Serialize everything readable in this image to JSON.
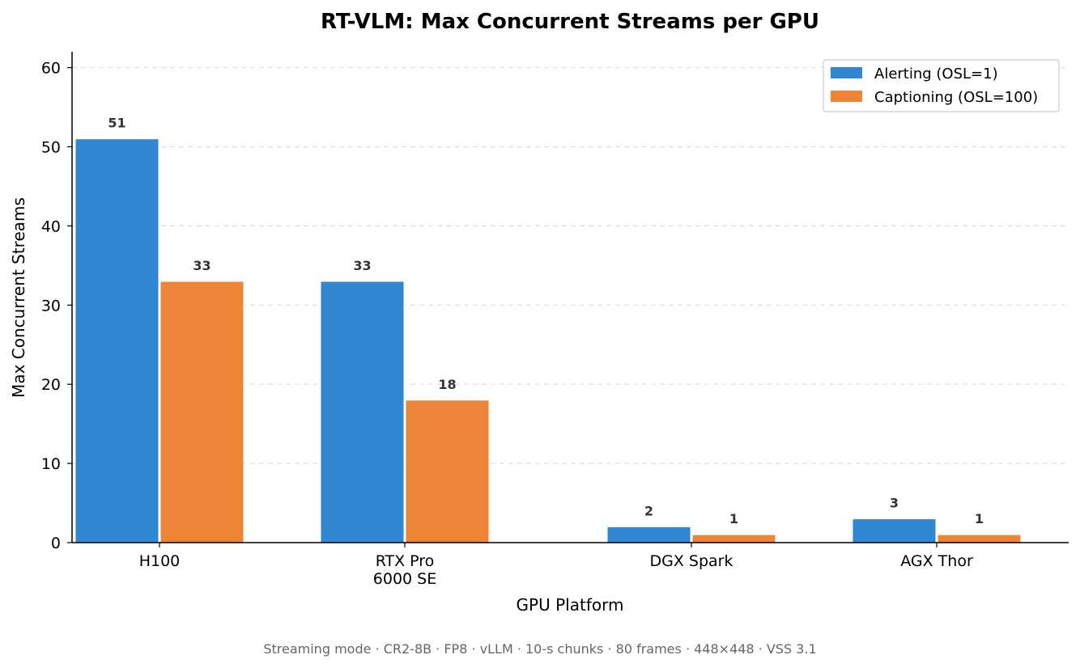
{
  "chart_data": {
    "type": "bar",
    "title": "RT-VLM: Max Concurrent Streams per GPU",
    "xlabel": "GPU Platform",
    "ylabel": "Max Concurrent Streams",
    "categories": [
      [
        "H100"
      ],
      [
        "RTX Pro",
        "6000 SE"
      ],
      [
        "DGX Spark"
      ],
      [
        "AGX Thor"
      ]
    ],
    "series": [
      {
        "name": "Alerting (OSL=1)",
        "color": "#2f86d1",
        "values": [
          51,
          33,
          2,
          3
        ]
      },
      {
        "name": "Captioning (OSL=100)",
        "color": "#ec8535",
        "values": [
          33,
          18,
          1,
          1
        ]
      }
    ],
    "ylim": [
      0,
      62
    ],
    "yticks": [
      0,
      10,
      20,
      30,
      40,
      50,
      60
    ],
    "grid": "horizontal-dashed",
    "legend_position": "top-right",
    "footnote": "Streaming mode · CR2-8B · FP8 · vLLM · 10-s chunks · 80 frames · 448×448 · VSS 3.1"
  }
}
